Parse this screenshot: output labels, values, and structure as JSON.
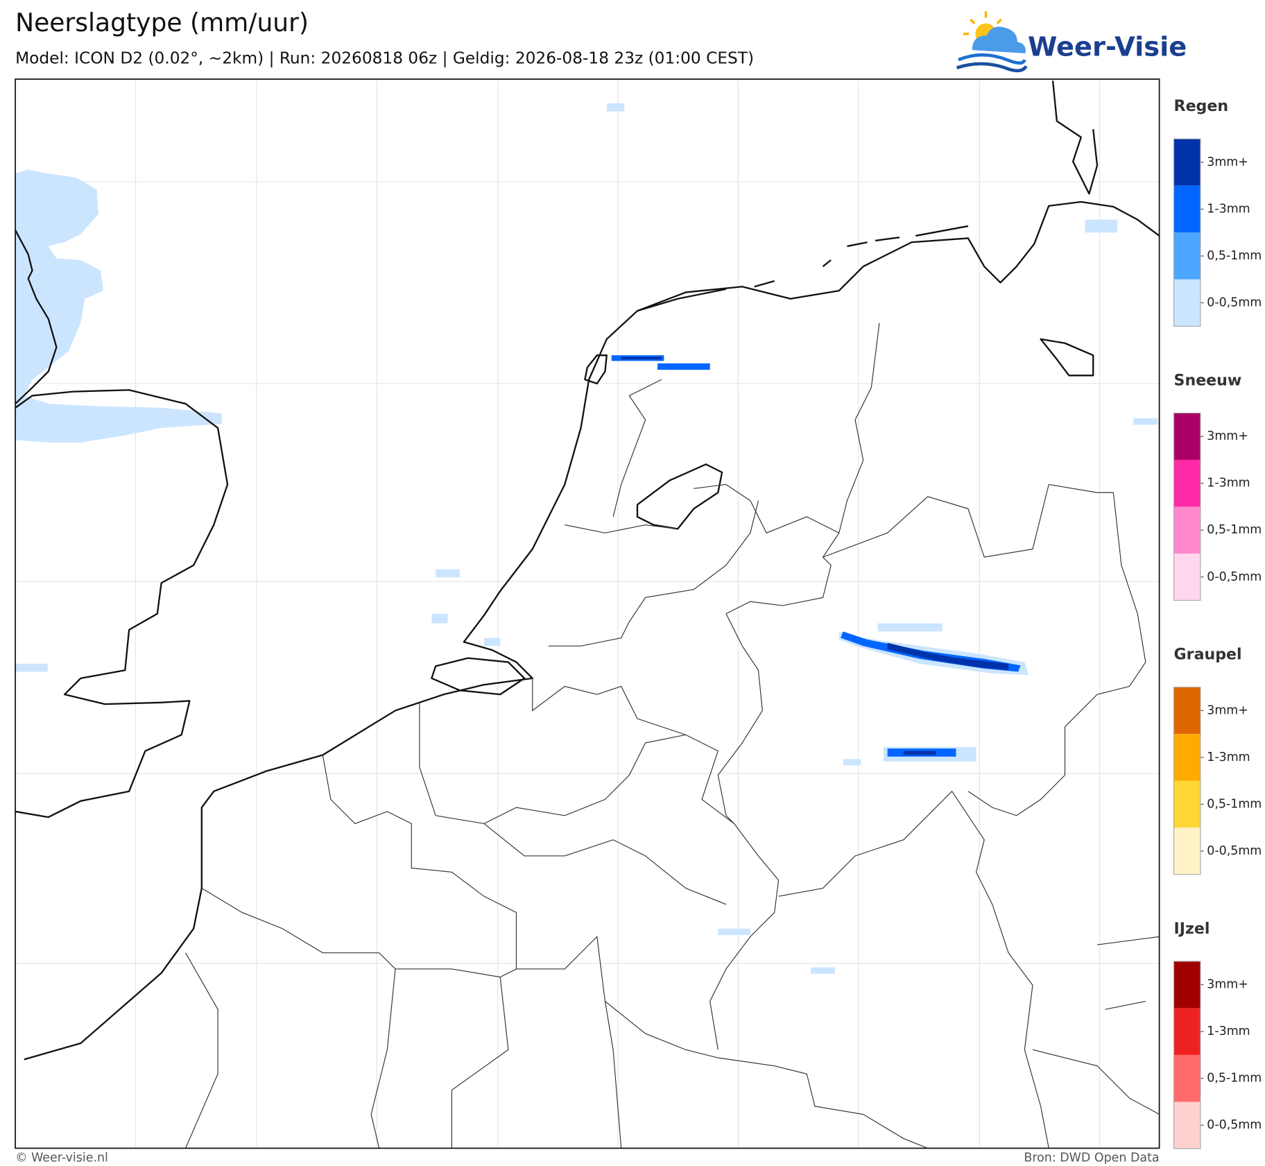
{
  "header": {
    "title": "Neerslagtype (mm/uur)",
    "subtitle": "Model: ICON D2 (0.02°, ~2km)  |  Run: 20260818 06z  |  Geldig: 2026-08-18 23z (01:00 CEST)"
  },
  "logo": {
    "text": "Weer-Visie"
  },
  "legend": {
    "groups": [
      {
        "title": "Regen",
        "items": [
          {
            "label": "3mm+",
            "color": "#0033aa"
          },
          {
            "label": "1-3mm",
            "color": "#0066ff"
          },
          {
            "label": "0,5-1mm",
            "color": "#4da6ff"
          },
          {
            "label": "0-0,5mm",
            "color": "#cce5ff"
          }
        ]
      },
      {
        "title": "Sneeuw",
        "items": [
          {
            "label": "3mm+",
            "color": "#aa0066"
          },
          {
            "label": "1-3mm",
            "color": "#ff2aa6"
          },
          {
            "label": "0,5-1mm",
            "color": "#ff88cc"
          },
          {
            "label": "0-0,5mm",
            "color": "#ffd6ec"
          }
        ]
      },
      {
        "title": "Graupel",
        "items": [
          {
            "label": "3mm+",
            "color": "#dd6600"
          },
          {
            "label": "1-3mm",
            "color": "#ffaa00"
          },
          {
            "label": "0,5-1mm",
            "color": "#ffd633"
          },
          {
            "label": "0-0,5mm",
            "color": "#fff2c6"
          }
        ]
      },
      {
        "title": "IJzel",
        "items": [
          {
            "label": "3mm+",
            "color": "#a00000"
          },
          {
            "label": "1-3mm",
            "color": "#ee2222"
          },
          {
            "label": "0,5-1mm",
            "color": "#ff6b6b"
          },
          {
            "label": "0-0,5mm",
            "color": "#ffd0d0"
          }
        ]
      }
    ]
  },
  "footer": {
    "left": "© Weer-visie.nl",
    "right": "Bron: DWD Open Data"
  }
}
